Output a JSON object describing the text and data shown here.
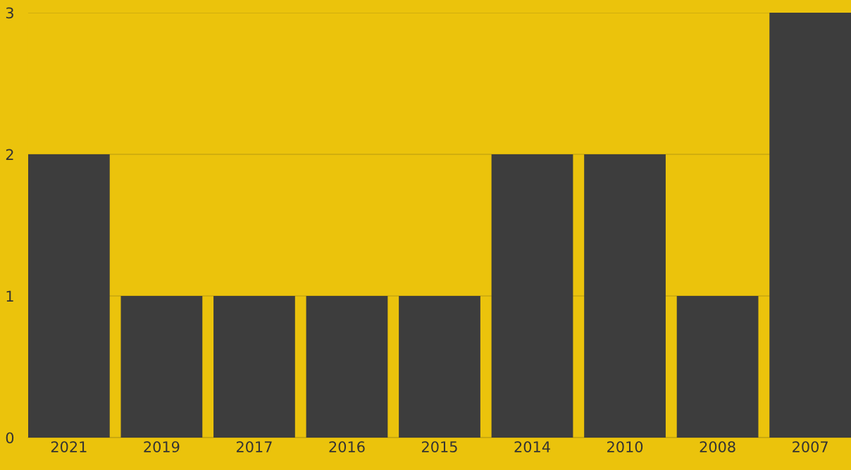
{
  "chart_data": {
    "type": "bar",
    "categories": [
      "2021",
      "2019",
      "2017",
      "2016",
      "2015",
      "2014",
      "2010",
      "2008",
      "2007"
    ],
    "values": [
      2,
      1,
      1,
      1,
      1,
      2,
      2,
      1,
      3
    ],
    "color": "#3d3d3d",
    "ylim": [
      0,
      3
    ],
    "yticks": [
      0,
      1,
      2,
      3
    ],
    "grid": "y",
    "legend": false
  }
}
